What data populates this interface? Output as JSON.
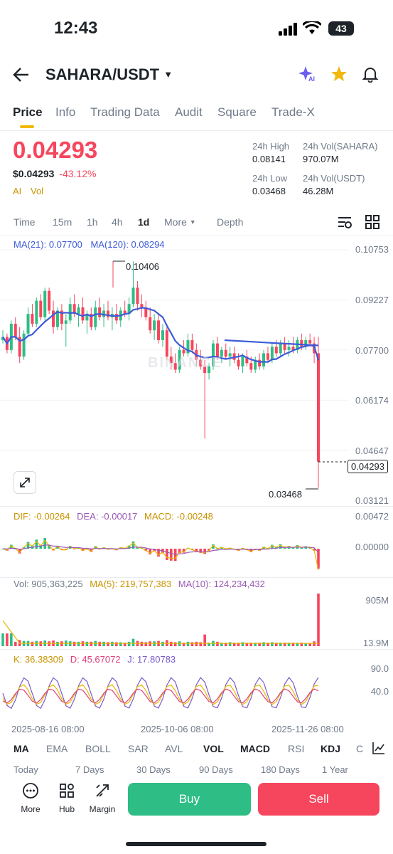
{
  "status": {
    "time": "12:43",
    "battery": "43"
  },
  "header": {
    "pair": "SAHARA/USDT",
    "ai_label": "AI"
  },
  "tabs": [
    "Price",
    "Info",
    "Trading Data",
    "Audit",
    "Square",
    "Trade-X"
  ],
  "ticker": {
    "last_price": "0.04293",
    "usd_price": "$0.04293",
    "change": "-43.12%",
    "tags": [
      "AI",
      "Vol"
    ],
    "high_label": "24h High",
    "high_value": "0.08141",
    "vol_base_label": "24h Vol(SAHARA)",
    "vol_base_value": "970.07M",
    "low_label": "24h Low",
    "low_value": "0.03468",
    "vol_quote_label": "24h Vol(USDT)",
    "vol_quote_value": "46.28M"
  },
  "timeframes": {
    "time": "Time",
    "m15": "15m",
    "h1": "1h",
    "h4": "4h",
    "d1": "1d",
    "more": "More",
    "depth": "Depth"
  },
  "chart": {
    "ma_legend": {
      "ma21": "MA(21): 0.07700",
      "ma120": "MA(120): 0.08294"
    },
    "price_levels": [
      "0.10753",
      "0.09227",
      "0.07700",
      "0.06174",
      "0.04647",
      "0.03121"
    ],
    "current_price_tag": "0.04293",
    "high_marker": "0.10406",
    "low_marker": "0.03468",
    "watermark": "BINANCE",
    "macd": {
      "dif": "DIF: -0.00264",
      "dea": "DEA: -0.00017",
      "macd": "MACD: -0.00248",
      "levels": [
        "0.00472",
        "0.00000"
      ]
    },
    "volume": {
      "vol": "Vol: 905,363,225",
      "ma5": "MA(5): 219,757,383",
      "ma10": "MA(10): 124,234,432",
      "levels": [
        "905M",
        "13.9M"
      ]
    },
    "kdj": {
      "k": "K: 36.38309",
      "d": "D: 45.67072",
      "j": "J: 17.80783",
      "levels": [
        "90.0",
        "40.0"
      ]
    },
    "dates": [
      "2025-08-16 08:00",
      "2025-10-06 08:00",
      "2025-11-26 08:00"
    ],
    "colors": {
      "up": "#2ebd85",
      "down": "#f6465d",
      "ma21": "#3d5bd9",
      "macd_dif": "#e8b800",
      "macd_dea": "#9b59b6"
    }
  },
  "indicators": [
    "MA",
    "EMA",
    "BOLL",
    "SAR",
    "AVL",
    "VOL",
    "MACD",
    "RSI",
    "KDJ",
    "C"
  ],
  "ranges": [
    "Today",
    "7 Days",
    "30 Days",
    "90 Days",
    "180 Days",
    "1 Year"
  ],
  "bottom_nav": {
    "more": "More",
    "hub": "Hub",
    "margin": "Margin",
    "buy": "Buy",
    "sell": "Sell"
  },
  "ohlc": [
    [
      0.08,
      0.083,
      0.079,
      0.081
    ],
    [
      0.081,
      0.082,
      0.076,
      0.077
    ],
    [
      0.077,
      0.086,
      0.076,
      0.085
    ],
    [
      0.085,
      0.087,
      0.08,
      0.081
    ],
    [
      0.081,
      0.084,
      0.073,
      0.075
    ],
    [
      0.075,
      0.083,
      0.074,
      0.082
    ],
    [
      0.082,
      0.09,
      0.081,
      0.088
    ],
    [
      0.088,
      0.091,
      0.084,
      0.085
    ],
    [
      0.085,
      0.093,
      0.084,
      0.092
    ],
    [
      0.092,
      0.094,
      0.086,
      0.087
    ],
    [
      0.087,
      0.096,
      0.086,
      0.095
    ],
    [
      0.095,
      0.096,
      0.088,
      0.089
    ],
    [
      0.089,
      0.092,
      0.082,
      0.084
    ],
    [
      0.084,
      0.09,
      0.083,
      0.089
    ],
    [
      0.089,
      0.091,
      0.083,
      0.085
    ],
    [
      0.085,
      0.088,
      0.078,
      0.086
    ],
    [
      0.086,
      0.093,
      0.085,
      0.091
    ],
    [
      0.091,
      0.094,
      0.087,
      0.088
    ],
    [
      0.088,
      0.091,
      0.084,
      0.09
    ],
    [
      0.09,
      0.093,
      0.085,
      0.086
    ],
    [
      0.086,
      0.089,
      0.082,
      0.088
    ],
    [
      0.088,
      0.09,
      0.083,
      0.084
    ],
    [
      0.084,
      0.092,
      0.083,
      0.09
    ],
    [
      0.09,
      0.093,
      0.086,
      0.087
    ],
    [
      0.087,
      0.091,
      0.084,
      0.089
    ],
    [
      0.089,
      0.092,
      0.086,
      0.087
    ],
    [
      0.087,
      0.09,
      0.083,
      0.088
    ],
    [
      0.088,
      0.091,
      0.085,
      0.086
    ],
    [
      0.086,
      0.09,
      0.084,
      0.089
    ],
    [
      0.089,
      0.092,
      0.087,
      0.088
    ],
    [
      0.088,
      0.093,
      0.086,
      0.091
    ],
    [
      0.091,
      0.104,
      0.09,
      0.096
    ],
    [
      0.096,
      0.098,
      0.089,
      0.091
    ],
    [
      0.091,
      0.094,
      0.087,
      0.09
    ],
    [
      0.09,
      0.092,
      0.086,
      0.087
    ],
    [
      0.087,
      0.09,
      0.082,
      0.083
    ],
    [
      0.083,
      0.088,
      0.08,
      0.086
    ],
    [
      0.086,
      0.088,
      0.079,
      0.08
    ],
    [
      0.08,
      0.085,
      0.078,
      0.083
    ],
    [
      0.083,
      0.085,
      0.074,
      0.075
    ],
    [
      0.075,
      0.078,
      0.071,
      0.073
    ],
    [
      0.073,
      0.076,
      0.07,
      0.071
    ],
    [
      0.071,
      0.078,
      0.07,
      0.077
    ],
    [
      0.077,
      0.08,
      0.075,
      0.076
    ],
    [
      0.076,
      0.082,
      0.075,
      0.08
    ],
    [
      0.08,
      0.082,
      0.076,
      0.077
    ],
    [
      0.077,
      0.079,
      0.072,
      0.074
    ],
    [
      0.074,
      0.077,
      0.071,
      0.072
    ],
    [
      0.072,
      0.074,
      0.05,
      0.07
    ],
    [
      0.07,
      0.073,
      0.068,
      0.072
    ],
    [
      0.072,
      0.08,
      0.071,
      0.079
    ],
    [
      0.079,
      0.081,
      0.074,
      0.075
    ],
    [
      0.075,
      0.078,
      0.073,
      0.077
    ],
    [
      0.077,
      0.079,
      0.074,
      0.075
    ],
    [
      0.075,
      0.078,
      0.072,
      0.076
    ],
    [
      0.076,
      0.078,
      0.073,
      0.074
    ],
    [
      0.074,
      0.076,
      0.071,
      0.072
    ],
    [
      0.072,
      0.076,
      0.07,
      0.075
    ],
    [
      0.075,
      0.077,
      0.072,
      0.073
    ],
    [
      0.073,
      0.075,
      0.07,
      0.071
    ],
    [
      0.071,
      0.075,
      0.07,
      0.074
    ],
    [
      0.074,
      0.076,
      0.071,
      0.072
    ],
    [
      0.072,
      0.077,
      0.071,
      0.076
    ],
    [
      0.076,
      0.078,
      0.073,
      0.074
    ],
    [
      0.074,
      0.079,
      0.073,
      0.078
    ],
    [
      0.078,
      0.08,
      0.075,
      0.076
    ],
    [
      0.076,
      0.08,
      0.075,
      0.079
    ],
    [
      0.079,
      0.081,
      0.076,
      0.077
    ],
    [
      0.077,
      0.08,
      0.075,
      0.078
    ],
    [
      0.078,
      0.081,
      0.076,
      0.077
    ],
    [
      0.077,
      0.081,
      0.076,
      0.08
    ],
    [
      0.08,
      0.082,
      0.077,
      0.078
    ],
    [
      0.078,
      0.081,
      0.077,
      0.08
    ],
    [
      0.08,
      0.082,
      0.078,
      0.079
    ],
    [
      0.079,
      0.081,
      0.073,
      0.076
    ],
    [
      0.076,
      0.081,
      0.035,
      0.043
    ]
  ]
}
